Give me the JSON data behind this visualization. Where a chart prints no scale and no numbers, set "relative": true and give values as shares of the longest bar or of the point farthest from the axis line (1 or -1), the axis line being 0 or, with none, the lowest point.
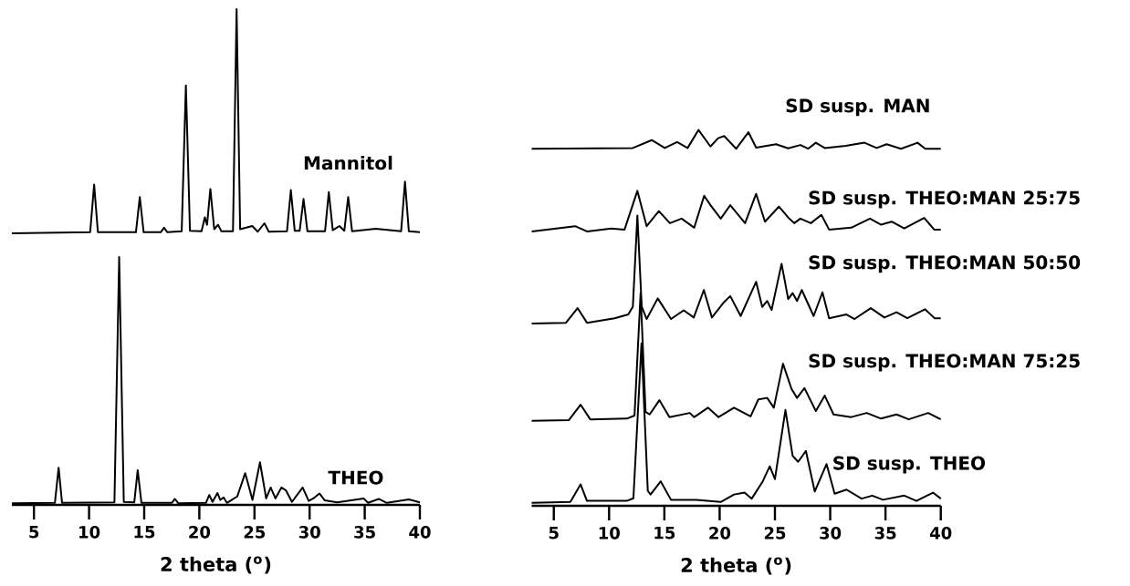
{
  "chart_data": [
    {
      "type": "line",
      "relative": true,
      "xlabel": "2 theta ($^{o}$)",
      "xlim": [
        3,
        40
      ],
      "xticks": [
        5,
        10,
        15,
        20,
        25,
        30,
        35,
        40
      ],
      "series": [
        {
          "name": "Mannitol",
          "color": "#000000",
          "x": [
            3.0,
            10.1,
            10.46,
            10.8,
            14.25,
            14.6,
            14.95,
            16.5,
            16.8,
            17.1,
            18.4,
            18.78,
            19.15,
            20.2,
            20.5,
            20.7,
            21.0,
            21.35,
            21.7,
            22.0,
            23.05,
            23.38,
            23.7,
            24.8,
            25.3,
            25.9,
            26.3,
            27.95,
            28.3,
            28.65,
            29.1,
            29.45,
            29.8,
            31.4,
            31.74,
            32.1,
            32.7,
            33.15,
            33.5,
            33.85,
            36.0,
            38.3,
            38.65,
            39.0,
            40
          ],
          "values": [
            0.548,
            0.55,
            0.646,
            0.55,
            0.55,
            0.621,
            0.55,
            0.55,
            0.559,
            0.55,
            0.552,
            0.846,
            0.553,
            0.552,
            0.58,
            0.565,
            0.637,
            0.556,
            0.565,
            0.552,
            0.552,
            1.0,
            0.556,
            0.5625,
            0.551,
            0.568,
            0.551,
            0.552,
            0.635,
            0.553,
            0.553,
            0.617,
            0.552,
            0.552,
            0.631,
            0.554,
            0.5625,
            0.553,
            0.621,
            0.552,
            0.557,
            0.552,
            0.652,
            0.552,
            0.55
          ]
        },
        {
          "name": "THEO",
          "color": "#000000",
          "x": [
            3.0,
            6.9,
            7.24,
            7.55,
            12.3,
            12.73,
            13.15,
            14.1,
            14.41,
            14.75,
            17.5,
            17.78,
            18.1,
            20.6,
            20.9,
            21.2,
            21.64,
            21.9,
            22.2,
            22.5,
            23.44,
            24.16,
            24.82,
            25.5,
            26.06,
            26.47,
            26.9,
            27.44,
            27.86,
            28.4,
            29.37,
            29.92,
            30.33,
            30.89,
            31.38,
            32.5,
            34.9,
            35.3,
            36.27,
            37.0,
            39.0,
            40
          ],
          "values": [
            0.003,
            0.004,
            0.075,
            0.004,
            0.005,
            0.5,
            0.006,
            0.005,
            0.07,
            0.004,
            0.004,
            0.012,
            0.003,
            0.004,
            0.02,
            0.006,
            0.024,
            0.01,
            0.015,
            0.004,
            0.017,
            0.064,
            0.01,
            0.086,
            0.013,
            0.035,
            0.013,
            0.035,
            0.029,
            0.006,
            0.035,
            0.008,
            0.013,
            0.023,
            0.009,
            0.005,
            0.013,
            0.004,
            0.012,
            0.004,
            0.011,
            0.005
          ]
        }
      ]
    },
    {
      "type": "line",
      "relative": true,
      "xlabel": "2 theta ($^{o}$)",
      "xlim": [
        3,
        40
      ],
      "xticks": [
        5,
        10,
        15,
        20,
        25,
        30,
        35,
        40
      ],
      "series": [
        {
          "name": "SD susp. MAN",
          "color": "#000000",
          "x": [
            3.0,
            12.15,
            13.86,
            15.04,
            16.15,
            17.1,
            18.09,
            19.17,
            19.86,
            20.41,
            21.5,
            22.6,
            23.3,
            25.1,
            26.2,
            27.3,
            28.0,
            28.7,
            29.5,
            31.4,
            33.1,
            34.2,
            35.1,
            36.4,
            37.9,
            38.6,
            40
          ],
          "values": [
            0.95,
            0.952,
            0.973,
            0.952,
            0.968,
            0.952,
            1.0,
            0.956,
            0.978,
            0.984,
            0.95,
            0.994,
            0.953,
            0.962,
            0.951,
            0.96,
            0.95,
            0.966,
            0.952,
            0.958,
            0.966,
            0.952,
            0.962,
            0.95,
            0.966,
            0.95,
            0.95
          ]
        },
        {
          "name": "SD susp. THEO:MAN 25:75",
          "color": "#000000",
          "x": [
            3.0,
            6.93,
            8.0,
            10.2,
            11.4,
            12.56,
            13.4,
            14.5,
            15.5,
            16.56,
            17.7,
            18.6,
            19.17,
            20.1,
            20.96,
            22.3,
            23.3,
            24.1,
            25.36,
            26.2,
            26.75,
            27.3,
            28.25,
            29.2,
            29.9,
            31.9,
            33.6,
            34.6,
            35.55,
            36.7,
            38.5,
            39.4,
            40
          ],
          "values": [
            0.73,
            0.744,
            0.73,
            0.738,
            0.735,
            0.838,
            0.744,
            0.784,
            0.752,
            0.764,
            0.74,
            0.825,
            0.8,
            0.764,
            0.8,
            0.752,
            0.83,
            0.756,
            0.796,
            0.767,
            0.752,
            0.764,
            0.752,
            0.774,
            0.735,
            0.74,
            0.764,
            0.748,
            0.756,
            0.738,
            0.766,
            0.735,
            0.735
          ]
        },
        {
          "name": "SD susp. THEO:MAN 50:50",
          "color": "#000000",
          "x": [
            3.0,
            6.1,
            7.15,
            8.0,
            10.5,
            11.74,
            12.15,
            12.56,
            12.95,
            13.4,
            14.4,
            15.6,
            16.75,
            17.66,
            18.57,
            19.3,
            20.4,
            20.96,
            21.9,
            23.3,
            23.85,
            24.3,
            24.7,
            25.6,
            26.2,
            26.6,
            27.0,
            27.43,
            28.5,
            29.3,
            29.9,
            31.47,
            32.2,
            33.67,
            34.9,
            36.0,
            36.97,
            38.57,
            39.45,
            40
          ],
          "values": [
            0.485,
            0.487,
            0.526,
            0.487,
            0.499,
            0.509,
            0.53,
            0.772,
            0.53,
            0.497,
            0.552,
            0.497,
            0.52,
            0.501,
            0.574,
            0.501,
            0.542,
            0.558,
            0.505,
            0.596,
            0.529,
            0.545,
            0.521,
            0.644,
            0.55,
            0.566,
            0.545,
            0.574,
            0.505,
            0.568,
            0.499,
            0.509,
            0.497,
            0.526,
            0.501,
            0.515,
            0.499,
            0.523,
            0.499,
            0.499
          ]
        },
        {
          "name": "SD susp. THEO:MAN 75:25",
          "color": "#000000",
          "x": [
            3.0,
            6.37,
            7.42,
            8.3,
            11.6,
            12.3,
            12.85,
            13.3,
            13.67,
            14.55,
            15.46,
            17.3,
            17.7,
            18.94,
            19.9,
            21.3,
            22.8,
            23.5,
            24.3,
            24.9,
            25.73,
            26.5,
            27.0,
            27.67,
            28.7,
            29.5,
            30.3,
            31.9,
            33.3,
            34.6,
            36.0,
            37.1,
            38.86,
            40
          ],
          "values": [
            0.226,
            0.228,
            0.269,
            0.23,
            0.232,
            0.24,
            0.566,
            0.25,
            0.243,
            0.281,
            0.236,
            0.247,
            0.236,
            0.261,
            0.236,
            0.261,
            0.238,
            0.283,
            0.287,
            0.261,
            0.378,
            0.311,
            0.287,
            0.313,
            0.252,
            0.293,
            0.243,
            0.236,
            0.247,
            0.232,
            0.243,
            0.23,
            0.247,
            0.23
          ]
        },
        {
          "name": "SD susp. THEO",
          "color": "#000000",
          "x": [
            3.0,
            6.5,
            7.42,
            8.0,
            11.6,
            12.2,
            12.93,
            13.5,
            13.75,
            14.67,
            15.6,
            17.9,
            20.1,
            21.3,
            22.25,
            22.9,
            23.9,
            24.53,
            25.0,
            25.95,
            26.6,
            27.1,
            27.8,
            28.6,
            29.67,
            30.4,
            31.47,
            32.84,
            33.8,
            34.77,
            36.7,
            37.8,
            39.3,
            40
          ],
          "values": [
            0.008,
            0.01,
            0.057,
            0.013,
            0.013,
            0.02,
            0.432,
            0.04,
            0.03,
            0.065,
            0.016,
            0.016,
            0.01,
            0.03,
            0.035,
            0.019,
            0.065,
            0.105,
            0.071,
            0.255,
            0.133,
            0.117,
            0.146,
            0.038,
            0.111,
            0.032,
            0.043,
            0.019,
            0.027,
            0.016,
            0.027,
            0.013,
            0.035,
            0.019
          ]
        }
      ]
    }
  ]
}
